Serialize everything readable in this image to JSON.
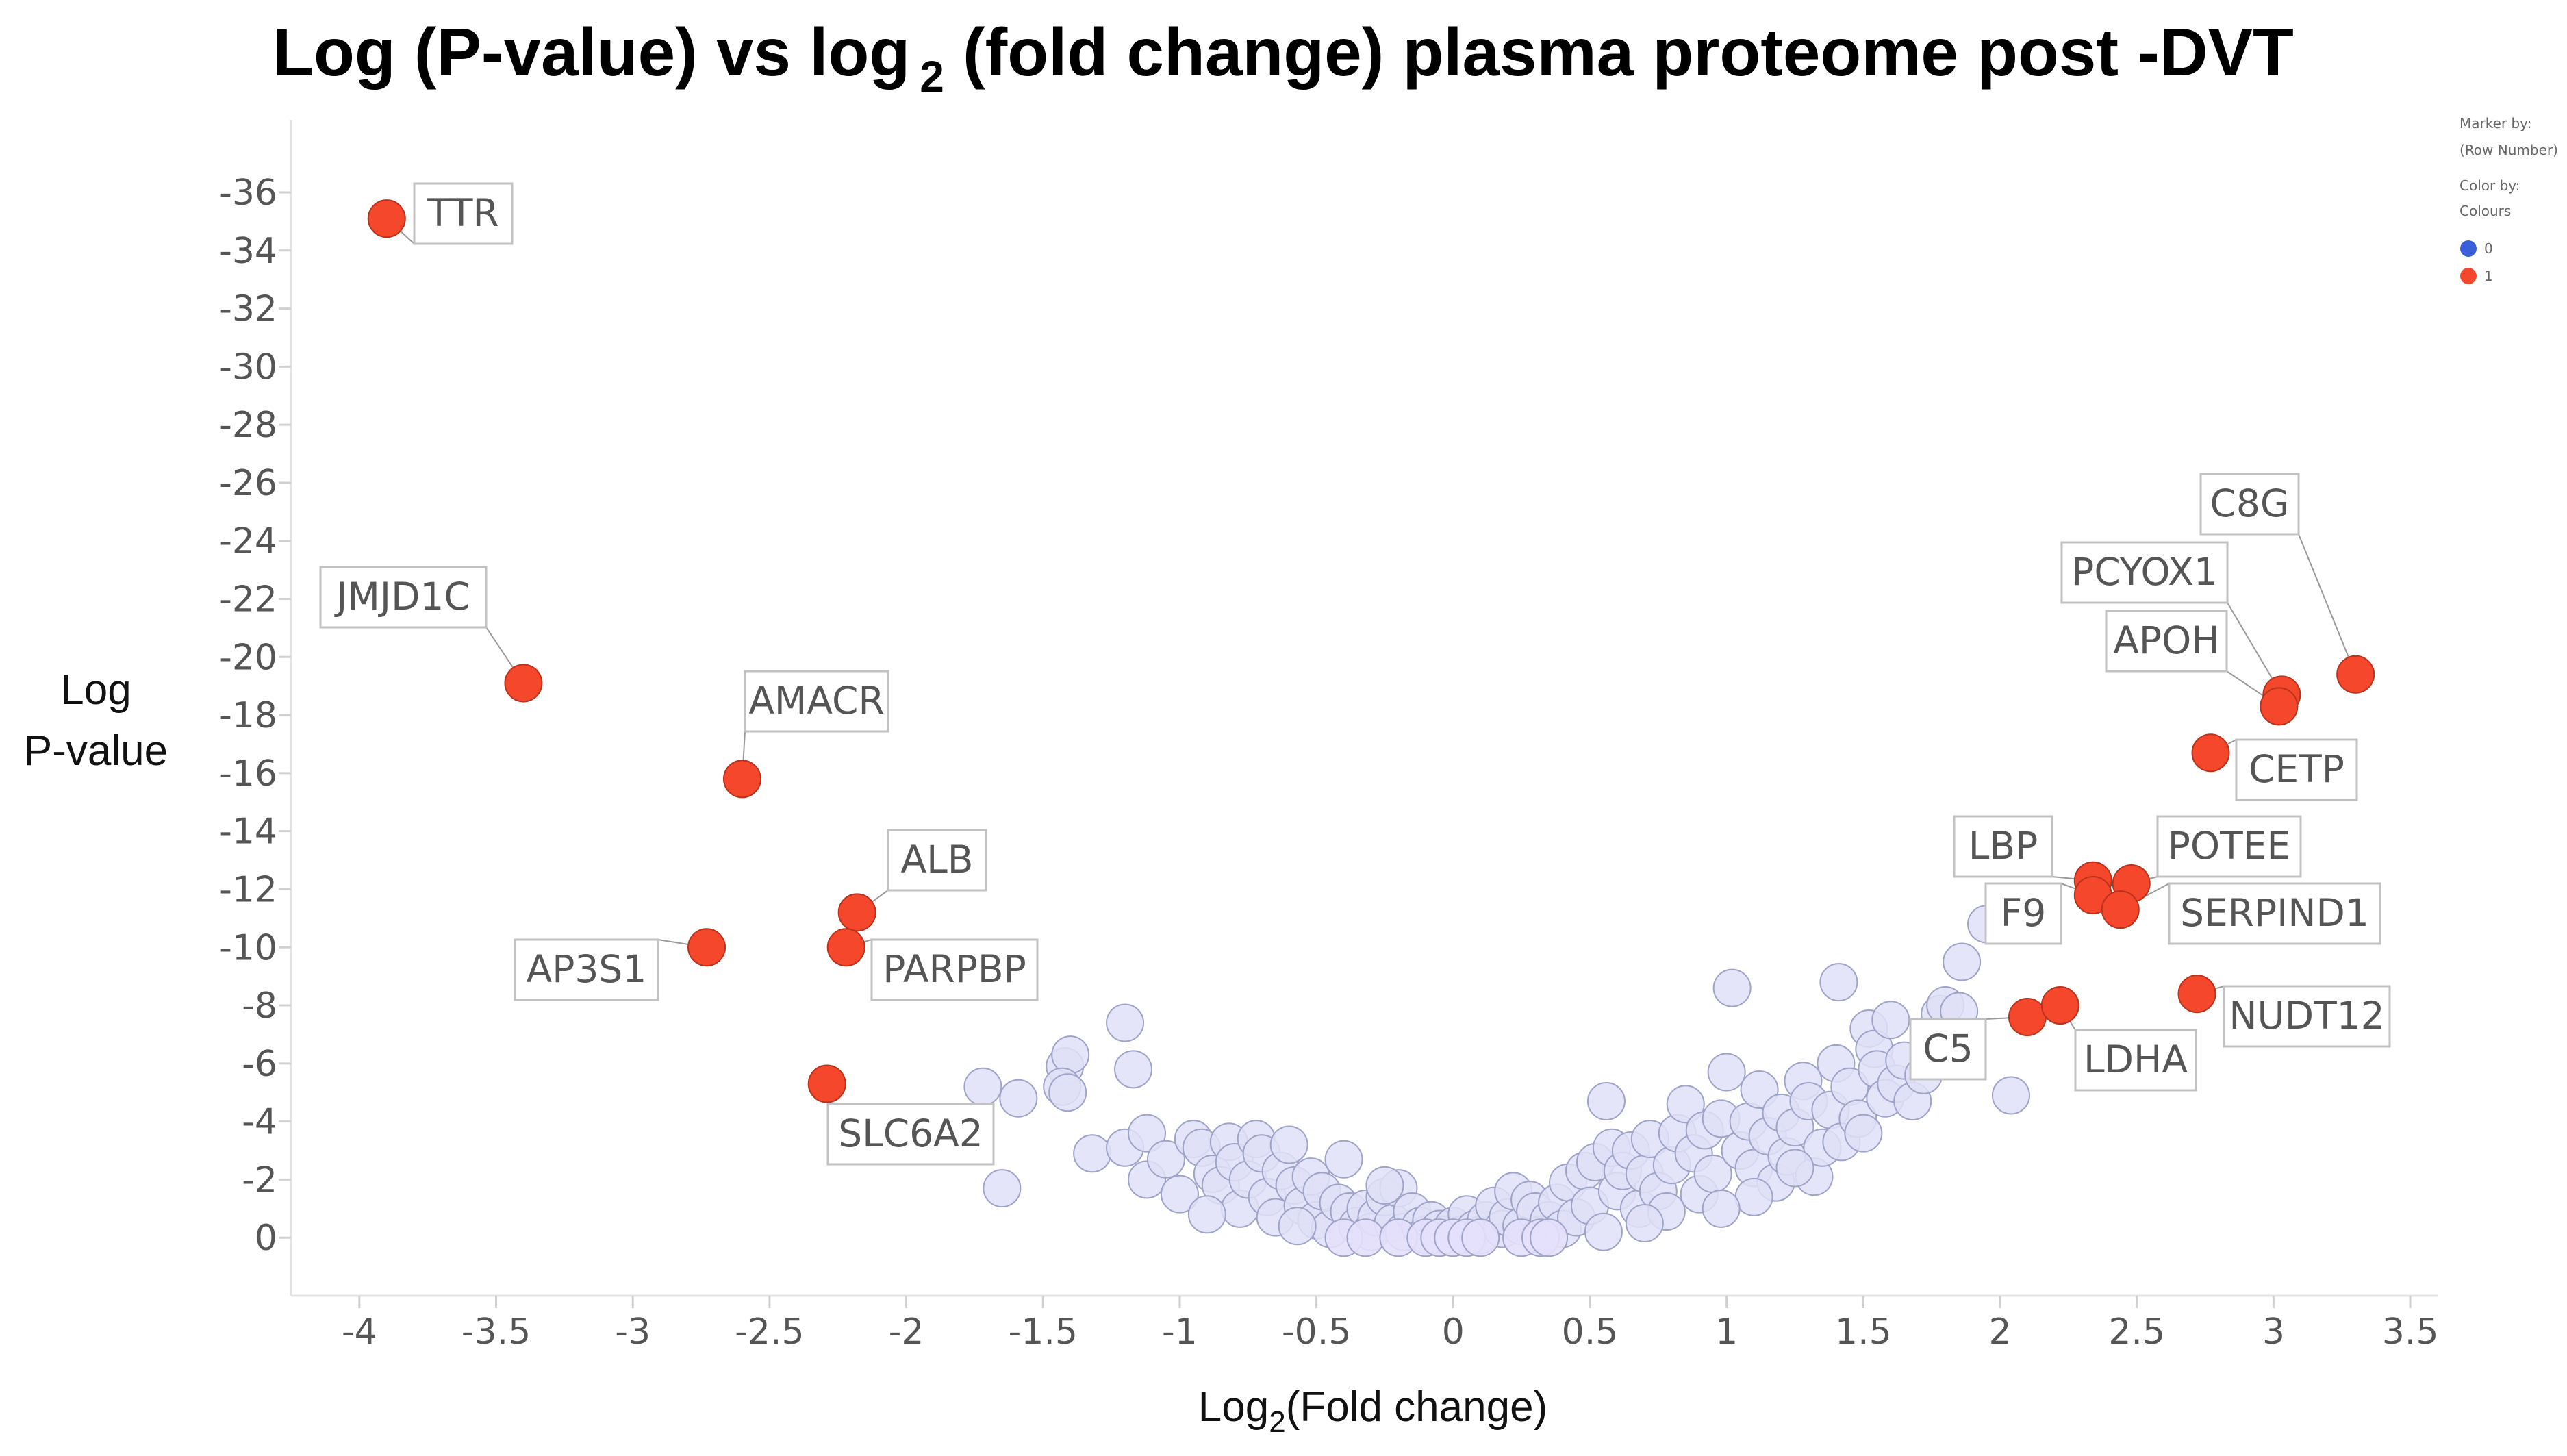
{
  "chart_data": {
    "type": "scatter",
    "title": "Log (P-value) vs log",
    "title_sub": "2",
    "title_rest": " (fold change) plasma proteome post -DVT",
    "xlabel": "Log",
    "xlabel_sub": "2",
    "xlabel_rest": "(Fold change)",
    "ylabel_line1": "Log",
    "ylabel_line2": "P-value",
    "xlim": [
      -4.25,
      3.6
    ],
    "ylim": [
      -38.5,
      2
    ],
    "x_ticks": [
      -4,
      -3.5,
      -3,
      -2.5,
      -2,
      -1.5,
      -1,
      -0.5,
      0,
      0.5,
      1,
      1.5,
      2,
      2.5,
      3,
      3.5
    ],
    "x_tick_labels": [
      "-4",
      "-3.5",
      "-3",
      "-2.5",
      "-2",
      "-1.5",
      "-1",
      "-0.5",
      "0",
      "0.5",
      "1",
      "1.5",
      "2",
      "2.5",
      "3",
      "3.5"
    ],
    "y_ticks": [
      -36,
      -34,
      -32,
      -30,
      -28,
      -26,
      -24,
      -22,
      -20,
      -18,
      -16,
      -14,
      -12,
      -10,
      -8,
      -6,
      -4,
      -2,
      0
    ],
    "y_tick_labels": [
      "-36",
      "-34",
      "-32",
      "-30",
      "-28",
      "-26",
      "-24",
      "-22",
      "-20",
      "-18",
      "-16",
      "-14",
      "-12",
      "-10",
      "-8",
      "-6",
      "-4",
      "-2",
      "0"
    ],
    "legend": {
      "marker_by_label": "Marker by:",
      "marker_by_value": "(Row Number)",
      "color_by_label": "Color by:",
      "color_by_value": "Colours",
      "entries": [
        {
          "label": "0",
          "color": "#3b5fd9"
        },
        {
          "label": "1",
          "color": "#f4472b"
        }
      ],
      "position": "top-right"
    },
    "colors": {
      "sig": "#f4472b",
      "sig_stroke": "#b8321c",
      "nonsig": "#dfe1f7",
      "nonsig_stroke": "#9ea3c8"
    },
    "significant": [
      {
        "name": "TTR",
        "x": -3.9,
        "y": -35.1
      },
      {
        "name": "JMJD1C",
        "x": -3.4,
        "y": -19.1
      },
      {
        "name": "AMACR",
        "x": -2.6,
        "y": -15.8
      },
      {
        "name": "ALB",
        "x": -2.18,
        "y": -11.2
      },
      {
        "name": "AP3S1",
        "x": -2.73,
        "y": -10.0
      },
      {
        "name": "PARPBP",
        "x": -2.22,
        "y": -10.0
      },
      {
        "name": "SLC6A2",
        "x": -2.29,
        "y": -5.3
      },
      {
        "name": "C8G",
        "x": 3.3,
        "y": -19.4
      },
      {
        "name": "PCYOX1",
        "x": 3.03,
        "y": -18.7
      },
      {
        "name": "APOH",
        "x": 3.02,
        "y": -18.3
      },
      {
        "name": "CETP",
        "x": 2.77,
        "y": -16.7
      },
      {
        "name": "LBP",
        "x": 2.34,
        "y": -12.3
      },
      {
        "name": "POTEE",
        "x": 2.48,
        "y": -12.2
      },
      {
        "name": "F9",
        "x": 2.34,
        "y": -11.8
      },
      {
        "name": "SERPIND1",
        "x": 2.44,
        "y": -11.3
      },
      {
        "name": "NUDT12",
        "x": 2.72,
        "y": -8.4
      },
      {
        "name": "C5",
        "x": 2.1,
        "y": -7.6
      },
      {
        "name": "LDHA",
        "x": 2.22,
        "y": -8.0
      }
    ],
    "nonsignificant": [
      [
        -1.65,
        -1.7
      ],
      [
        -1.72,
        -5.2
      ],
      [
        -1.59,
        -4.8
      ],
      [
        -1.42,
        -5.9
      ],
      [
        -1.4,
        -6.3
      ],
      [
        -1.43,
        -5.2
      ],
      [
        -1.41,
        -5.0
      ],
      [
        -1.2,
        -7.4
      ],
      [
        -1.17,
        -5.8
      ],
      [
        -1.32,
        -2.9
      ],
      [
        -1.2,
        -3.1
      ],
      [
        -1.12,
        -3.6
      ],
      [
        -1.12,
        -2.0
      ],
      [
        -1.05,
        -2.7
      ],
      [
        -1.0,
        -1.5
      ],
      [
        -0.95,
        -3.4
      ],
      [
        -0.92,
        -3.1
      ],
      [
        -0.88,
        -2.2
      ],
      [
        -0.85,
        -1.8
      ],
      [
        -0.82,
        -3.3
      ],
      [
        -0.8,
        -2.6
      ],
      [
        -0.78,
        -1.0
      ],
      [
        -0.75,
        -2.0
      ],
      [
        -0.72,
        -3.4
      ],
      [
        -0.7,
        -2.9
      ],
      [
        -0.68,
        -1.4
      ],
      [
        -0.65,
        -0.7
      ],
      [
        -0.63,
        -2.3
      ],
      [
        -0.6,
        -3.2
      ],
      [
        -0.58,
        -1.8
      ],
      [
        -0.55,
        -1.1
      ],
      [
        -0.52,
        -2.1
      ],
      [
        -0.5,
        -0.6
      ],
      [
        -0.48,
        -1.6
      ],
      [
        -0.45,
        -0.3
      ],
      [
        -0.42,
        -1.2
      ],
      [
        -0.4,
        -2.7
      ],
      [
        -0.38,
        -0.9
      ],
      [
        -0.35,
        -0.4
      ],
      [
        -0.32,
        -1.0
      ],
      [
        -0.3,
        -0.2
      ],
      [
        -0.28,
        -0.7
      ],
      [
        -0.25,
        -1.4
      ],
      [
        -0.22,
        -0.5
      ],
      [
        -0.2,
        -1.7
      ],
      [
        -0.18,
        -0.2
      ],
      [
        -0.15,
        -0.9
      ],
      [
        -0.12,
        -0.4
      ],
      [
        -0.1,
        -0.1
      ],
      [
        -0.08,
        -0.6
      ],
      [
        -0.05,
        -0.3
      ],
      [
        -0.03,
        -0.1
      ],
      [
        0.0,
        -0.4
      ],
      [
        0.03,
        -0.1
      ],
      [
        0.05,
        -0.8
      ],
      [
        0.08,
        -0.3
      ],
      [
        0.1,
        -0.1
      ],
      [
        0.12,
        -0.6
      ],
      [
        0.15,
        -1.1
      ],
      [
        0.18,
        -0.3
      ],
      [
        0.2,
        -0.7
      ],
      [
        0.22,
        -1.6
      ],
      [
        0.25,
        -0.4
      ],
      [
        0.28,
        -1.3
      ],
      [
        0.3,
        -0.9
      ],
      [
        0.32,
        -0.1
      ],
      [
        0.35,
        -0.6
      ],
      [
        0.38,
        -1.2
      ],
      [
        0.4,
        -0.3
      ],
      [
        0.42,
        -1.9
      ],
      [
        0.45,
        -0.7
      ],
      [
        0.48,
        -2.3
      ],
      [
        0.5,
        -1.1
      ],
      [
        0.52,
        -2.6
      ],
      [
        0.55,
        -0.2
      ],
      [
        0.56,
        -4.7
      ],
      [
        0.58,
        -3.1
      ],
      [
        0.6,
        -1.6
      ],
      [
        0.62,
        -2.3
      ],
      [
        0.65,
        -3.0
      ],
      [
        0.68,
        -1.0
      ],
      [
        0.7,
        -2.2
      ],
      [
        0.72,
        -3.4
      ],
      [
        0.75,
        -1.6
      ],
      [
        0.78,
        -0.9
      ],
      [
        0.8,
        -2.5
      ],
      [
        0.82,
        -3.6
      ],
      [
        0.85,
        -4.6
      ],
      [
        0.88,
        -2.9
      ],
      [
        0.9,
        -1.5
      ],
      [
        0.92,
        -3.7
      ],
      [
        0.95,
        -2.2
      ],
      [
        0.98,
        -4.1
      ],
      [
        1.0,
        -5.7
      ],
      [
        1.02,
        -8.6
      ],
      [
        1.05,
        -3.0
      ],
      [
        1.08,
        -4.0
      ],
      [
        1.1,
        -2.4
      ],
      [
        1.12,
        -5.1
      ],
      [
        1.15,
        -3.5
      ],
      [
        1.18,
        -1.9
      ],
      [
        1.2,
        -4.3
      ],
      [
        1.22,
        -2.8
      ],
      [
        1.25,
        -3.8
      ],
      [
        1.28,
        -5.4
      ],
      [
        1.3,
        -4.7
      ],
      [
        1.32,
        -2.1
      ],
      [
        1.35,
        -3.1
      ],
      [
        1.38,
        -4.4
      ],
      [
        1.4,
        -6.0
      ],
      [
        1.41,
        -8.8
      ],
      [
        1.42,
        -3.3
      ],
      [
        1.45,
        -5.2
      ],
      [
        1.48,
        -4.1
      ],
      [
        1.5,
        -3.6
      ],
      [
        1.52,
        -7.2
      ],
      [
        1.54,
        -6.5
      ],
      [
        1.55,
        -5.8
      ],
      [
        1.58,
        -4.8
      ],
      [
        1.6,
        -7.5
      ],
      [
        1.62,
        -5.3
      ],
      [
        1.65,
        -6.1
      ],
      [
        1.68,
        -4.7
      ],
      [
        1.72,
        -5.6
      ],
      [
        1.75,
        -6.9
      ],
      [
        1.78,
        -7.7
      ],
      [
        1.8,
        -8.0
      ],
      [
        1.85,
        -7.8
      ],
      [
        1.86,
        -9.5
      ],
      [
        1.95,
        -10.8
      ],
      [
        2.04,
        -4.9
      ],
      [
        1.1,
        -1.4
      ],
      [
        0.98,
        -1.0
      ],
      [
        -0.25,
        -1.8
      ],
      [
        -0.57,
        -0.4
      ],
      [
        0.7,
        -0.5
      ],
      [
        -0.9,
        -0.8
      ],
      [
        1.25,
        -2.4
      ]
    ]
  }
}
